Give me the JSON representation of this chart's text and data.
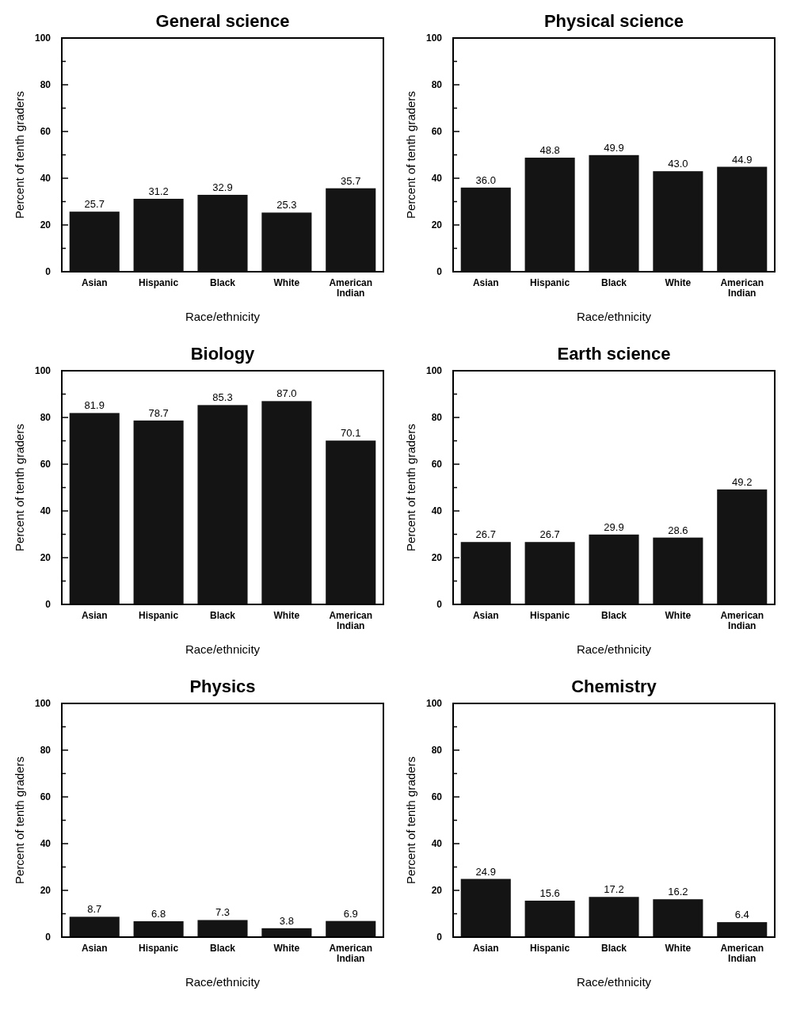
{
  "chart_data": [
    {
      "type": "bar",
      "title": "General science",
      "xlabel": "Race/ethnicity",
      "ylabel": "Percent of tenth graders",
      "categories": [
        "Asian",
        "Hispanic",
        "Black",
        "White",
        "American Indian"
      ],
      "values": [
        25.7,
        31.2,
        32.9,
        25.3,
        35.7
      ],
      "color": "#141414",
      "ylim": [
        0,
        100
      ],
      "yticks": [
        0,
        {
          "value": 10,
          "label": null
        },
        20,
        {
          "value": 30,
          "label": null
        },
        40,
        {
          "value": 50,
          "label": null
        },
        60,
        {
          "value": 70,
          "label": null
        },
        80,
        {
          "value": 90,
          "label": null
        },
        100
      ],
      "data_labels": true
    },
    {
      "type": "bar",
      "title": "Physical science",
      "xlabel": "Race/ethnicity",
      "ylabel": "Percent of tenth graders",
      "categories": [
        "Asian",
        "Hispanic",
        "Black",
        "White",
        "American Indian"
      ],
      "values": [
        36.0,
        48.8,
        49.9,
        43.0,
        44.9
      ],
      "value_labels": [
        "36.0",
        "48.8",
        "49.9",
        "43.0",
        "44.9"
      ],
      "color": "#141414",
      "ylim": [
        0,
        100
      ],
      "yticks": [
        0,
        {
          "value": 10,
          "label": null
        },
        20,
        {
          "value": 30,
          "label": null
        },
        40,
        {
          "value": 50,
          "label": null
        },
        60,
        {
          "value": 70,
          "label": null
        },
        80,
        {
          "value": 90,
          "label": null
        },
        100
      ],
      "data_labels": true
    },
    {
      "type": "bar",
      "title": "Biology",
      "xlabel": "Race/ethnicity",
      "ylabel": "Percent of tenth graders",
      "categories": [
        "Asian",
        "Hispanic",
        "Black",
        "White",
        "American Indian"
      ],
      "values": [
        81.9,
        78.7,
        85.3,
        87.0,
        70.1
      ],
      "value_labels": [
        "81.9",
        "78.7",
        "85.3",
        "87.0",
        "70.1"
      ],
      "color": "#141414",
      "ylim": [
        0,
        100
      ],
      "yticks": [
        0,
        {
          "value": 10,
          "label": null
        },
        20,
        {
          "value": 30,
          "label": null
        },
        40,
        {
          "value": 50,
          "label": null
        },
        60,
        {
          "value": 70,
          "label": null
        },
        80,
        {
          "value": 90,
          "label": null
        },
        100
      ],
      "data_labels": true
    },
    {
      "type": "bar",
      "title": "Earth science",
      "xlabel": "Race/ethnicity",
      "ylabel": "Percent of tenth graders",
      "categories": [
        "Asian",
        "Hispanic",
        "Black",
        "White",
        "American Indian"
      ],
      "values": [
        26.7,
        26.7,
        29.9,
        28.6,
        49.2
      ],
      "color": "#141414",
      "ylim": [
        0,
        100
      ],
      "yticks": [
        0,
        {
          "value": 10,
          "label": null
        },
        20,
        {
          "value": 30,
          "label": null
        },
        40,
        {
          "value": 50,
          "label": null
        },
        60,
        {
          "value": 70,
          "label": null
        },
        80,
        {
          "value": 90,
          "label": null
        },
        100
      ],
      "data_labels": true
    },
    {
      "type": "bar",
      "title": "Physics",
      "xlabel": "Race/ethnicity",
      "ylabel": "Percent of tenth graders",
      "categories": [
        "Asian",
        "Hispanic",
        "Black",
        "White",
        "American Indian"
      ],
      "values": [
        8.7,
        6.8,
        7.3,
        3.8,
        6.9
      ],
      "color": "#141414",
      "ylim": [
        0,
        100
      ],
      "yticks": [
        0,
        {
          "value": 10,
          "label": null
        },
        20,
        {
          "value": 30,
          "label": null
        },
        40,
        {
          "value": 50,
          "label": null
        },
        60,
        {
          "value": 70,
          "label": null
        },
        80,
        {
          "value": 90,
          "label": null
        },
        100
      ],
      "data_labels": true
    },
    {
      "type": "bar",
      "title": "Chemistry",
      "xlabel": "Race/ethnicity",
      "ylabel": "Percent of tenth graders",
      "categories": [
        "Asian",
        "Hispanic",
        "Black",
        "White",
        "American Indian"
      ],
      "values": [
        24.9,
        15.6,
        17.2,
        16.2,
        6.4
      ],
      "color": "#141414",
      "ylim": [
        0,
        100
      ],
      "yticks": [
        0,
        {
          "value": 10,
          "label": null
        },
        20,
        {
          "value": 30,
          "label": null
        },
        40,
        {
          "value": 50,
          "label": null
        },
        60,
        {
          "value": 70,
          "label": null
        },
        80,
        {
          "value": 90,
          "label": null
        },
        100
      ],
      "data_labels": true
    }
  ]
}
